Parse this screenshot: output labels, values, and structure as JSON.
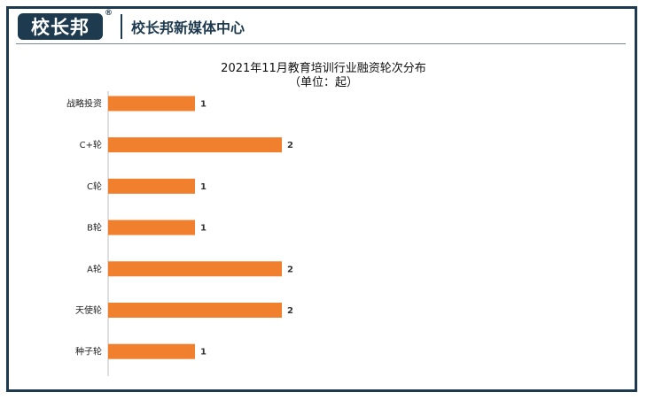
{
  "header": {
    "logo_text": "校长邦",
    "logo_mark": "®",
    "brand_name": "校长邦新媒体中心"
  },
  "colors": {
    "bar": "#f07f2e",
    "frame": "#1e3a4f"
  },
  "chart_data": {
    "type": "bar",
    "orientation": "horizontal",
    "title": "2021年11月教育培训行业融资轮次分布",
    "subtitle": "（单位：起）",
    "categories": [
      "战略投资",
      "C+轮",
      "C轮",
      "B轮",
      "A轮",
      "天使轮",
      "种子轮"
    ],
    "values": [
      1,
      2,
      1,
      1,
      2,
      2,
      1
    ],
    "xlim": [
      0,
      6
    ],
    "grid": false,
    "legend": "none"
  }
}
